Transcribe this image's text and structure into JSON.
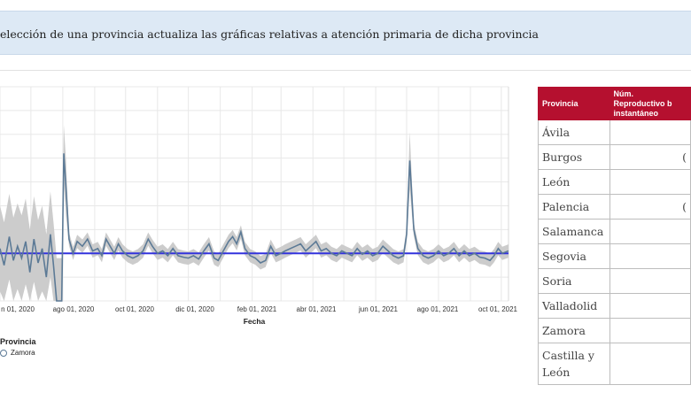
{
  "banner": {
    "text": "elección de una provincia actualiza las gráficas relativas a atención primaria de dicha provincia"
  },
  "chart_data": {
    "type": "line",
    "xlabel": "Fecha",
    "x_ticks": [
      "n 01, 2020",
      "ago 01, 2020",
      "oct 01, 2020",
      "dic 01, 2020",
      "feb 01, 2021",
      "abr 01, 2021",
      "jun 01, 2021",
      "ago 01, 2021",
      "oct 01, 2021"
    ],
    "x_range": [
      "2020-06-01",
      "2021-10-08"
    ],
    "y_range": [
      0,
      4.5
    ],
    "grid": true,
    "reference_line": 1,
    "colors": {
      "line": "#5c7a96",
      "band": "#cccccc",
      "reference": "#3333dd"
    },
    "series": [
      {
        "name": "Zamora",
        "points": [
          [
            "2020-06-01",
            1.1
          ],
          [
            "2020-06-05",
            0.75
          ],
          [
            "2020-06-10",
            1.35
          ],
          [
            "2020-06-14",
            0.85
          ],
          [
            "2020-06-18",
            1.15
          ],
          [
            "2020-06-22",
            0.9
          ],
          [
            "2020-06-26",
            1.25
          ],
          [
            "2020-06-30",
            0.6
          ],
          [
            "2020-07-04",
            1.3
          ],
          [
            "2020-07-08",
            0.8
          ],
          [
            "2020-07-12",
            1.1
          ],
          [
            "2020-07-16",
            0.5
          ],
          [
            "2020-07-20",
            1.4
          ],
          [
            "2020-07-23",
            0.75
          ],
          [
            "2020-07-26",
            0.0
          ],
          [
            "2020-07-31",
            0.0
          ],
          [
            "2020-08-02",
            3.1
          ],
          [
            "2020-08-04",
            2.4
          ],
          [
            "2020-08-07",
            1.3
          ],
          [
            "2020-08-11",
            1.0
          ],
          [
            "2020-08-15",
            1.25
          ],
          [
            "2020-08-20",
            1.15
          ],
          [
            "2020-08-25",
            1.3
          ],
          [
            "2020-08-30",
            1.05
          ],
          [
            "2020-09-04",
            1.1
          ],
          [
            "2020-09-08",
            0.95
          ],
          [
            "2020-09-12",
            1.3
          ],
          [
            "2020-09-16",
            1.15
          ],
          [
            "2020-09-20",
            1.0
          ],
          [
            "2020-09-24",
            1.2
          ],
          [
            "2020-09-28",
            1.05
          ],
          [
            "2020-10-03",
            0.95
          ],
          [
            "2020-10-08",
            0.9
          ],
          [
            "2020-10-13",
            0.95
          ],
          [
            "2020-10-18",
            1.05
          ],
          [
            "2020-10-23",
            1.3
          ],
          [
            "2020-10-27",
            1.15
          ],
          [
            "2020-11-01",
            1.0
          ],
          [
            "2020-11-06",
            1.05
          ],
          [
            "2020-11-11",
            0.95
          ],
          [
            "2020-11-16",
            1.1
          ],
          [
            "2020-11-21",
            0.95
          ],
          [
            "2020-11-26",
            0.92
          ],
          [
            "2020-12-01",
            0.9
          ],
          [
            "2020-12-06",
            0.95
          ],
          [
            "2020-12-11",
            0.88
          ],
          [
            "2020-12-16",
            1.05
          ],
          [
            "2020-12-21",
            1.2
          ],
          [
            "2020-12-26",
            0.9
          ],
          [
            "2020-12-30",
            0.85
          ],
          [
            "2021-01-04",
            1.05
          ],
          [
            "2021-01-09",
            1.25
          ],
          [
            "2021-01-13",
            1.35
          ],
          [
            "2021-01-17",
            1.2
          ],
          [
            "2021-01-21",
            1.45
          ],
          [
            "2021-01-25",
            1.1
          ],
          [
            "2021-01-30",
            0.95
          ],
          [
            "2021-02-04",
            0.9
          ],
          [
            "2021-02-09",
            0.8
          ],
          [
            "2021-02-14",
            0.85
          ],
          [
            "2021-02-19",
            1.15
          ],
          [
            "2021-02-24",
            0.95
          ],
          [
            "2021-03-01",
            1.0
          ],
          [
            "2021-03-05",
            1.05
          ],
          [
            "2021-03-10",
            1.1
          ],
          [
            "2021-03-15",
            1.15
          ],
          [
            "2021-03-20",
            1.2
          ],
          [
            "2021-03-25",
            1.05
          ],
          [
            "2021-03-30",
            1.15
          ],
          [
            "2021-04-04",
            1.25
          ],
          [
            "2021-04-09",
            1.05
          ],
          [
            "2021-04-14",
            1.1
          ],
          [
            "2021-04-19",
            1.0
          ],
          [
            "2021-04-24",
            0.95
          ],
          [
            "2021-04-29",
            1.05
          ],
          [
            "2021-05-04",
            1.0
          ],
          [
            "2021-05-09",
            0.95
          ],
          [
            "2021-05-14",
            1.1
          ],
          [
            "2021-05-19",
            0.98
          ],
          [
            "2021-05-24",
            1.05
          ],
          [
            "2021-05-29",
            0.95
          ],
          [
            "2021-06-03",
            1.0
          ],
          [
            "2021-06-08",
            1.15
          ],
          [
            "2021-06-13",
            1.05
          ],
          [
            "2021-06-18",
            0.95
          ],
          [
            "2021-06-23",
            0.9
          ],
          [
            "2021-06-28",
            0.95
          ],
          [
            "2021-07-01",
            1.4
          ],
          [
            "2021-07-04",
            2.95
          ],
          [
            "2021-07-08",
            1.5
          ],
          [
            "2021-07-12",
            1.1
          ],
          [
            "2021-07-17",
            0.95
          ],
          [
            "2021-07-22",
            0.9
          ],
          [
            "2021-07-27",
            0.95
          ],
          [
            "2021-08-01",
            1.05
          ],
          [
            "2021-08-06",
            0.95
          ],
          [
            "2021-08-11",
            1.0
          ],
          [
            "2021-08-16",
            1.1
          ],
          [
            "2021-08-21",
            0.95
          ],
          [
            "2021-08-26",
            1.05
          ],
          [
            "2021-08-31",
            0.95
          ],
          [
            "2021-09-05",
            1.0
          ],
          [
            "2021-09-10",
            0.92
          ],
          [
            "2021-09-15",
            0.9
          ],
          [
            "2021-09-20",
            0.85
          ],
          [
            "2021-09-24",
            0.95
          ],
          [
            "2021-09-28",
            1.1
          ],
          [
            "2021-10-02",
            1.0
          ],
          [
            "2021-10-08",
            1.05
          ]
        ]
      }
    ]
  },
  "legend": {
    "title": "Provincia",
    "items": [
      "Zamora"
    ]
  },
  "table": {
    "headers": [
      "Provincia",
      "Núm. Reproductivo b instantáneo"
    ],
    "rows": [
      {
        "name": "Ávila",
        "value": ""
      },
      {
        "name": "Burgos",
        "value": "("
      },
      {
        "name": "León",
        "value": ""
      },
      {
        "name": "Palencia",
        "value": "("
      },
      {
        "name": "Salamanca",
        "value": ""
      },
      {
        "name": "Segovia",
        "value": ""
      },
      {
        "name": "Soria",
        "value": ""
      },
      {
        "name": "Valladolid",
        "value": ""
      },
      {
        "name": "Zamora",
        "value": ""
      },
      {
        "name": "Castilla y León",
        "value": ""
      }
    ]
  }
}
